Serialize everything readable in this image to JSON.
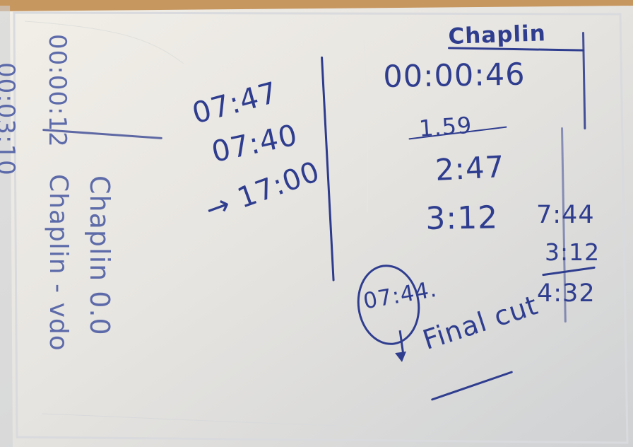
{
  "notes": {
    "left_top": {
      "line_1": "00:03:10",
      "line_2": "00:00:12"
    },
    "left_bottom": {
      "line_1": "Chaplin - vdo",
      "line_2": "Chaplin 0.0"
    },
    "middle": {
      "time_1": "07:47",
      "time_2": "07:40",
      "time_3": "→ 17:00"
    },
    "right": {
      "heading": "Chaplin",
      "timecode": "00:00:46",
      "struck": "1.59",
      "time_1": "2:47",
      "time_2": "3:12",
      "circled": "07:44.",
      "caption": "Final cut",
      "math_1": "7:44",
      "math_2": "3:12",
      "math_3": "4:32"
    }
  }
}
